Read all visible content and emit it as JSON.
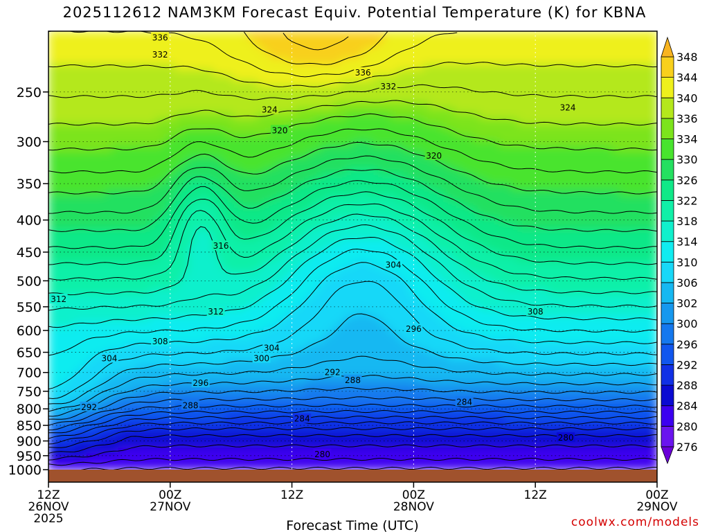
{
  "title": "2025112612 NAM3KM Forecast Equiv. Potential Temperature (K) for KBNA",
  "credit": "coolwx.com/models",
  "chart_data": {
    "type": "heatmap",
    "variable": "Equivalent Potential Temperature (K)",
    "xlabel": "Forecast Time (UTC)",
    "ylabel": "",
    "x_range_hours": [
      0,
      60
    ],
    "y_range_hpa": [
      200,
      1000
    ],
    "y_scale": "log-pressure (inverted)",
    "x_ticks": [
      {
        "hour": 0,
        "label": "12Z",
        "sub": "26NOV",
        "sub2": "2025"
      },
      {
        "hour": 12,
        "label": "00Z",
        "sub": "27NOV",
        "sub2": ""
      },
      {
        "hour": 24,
        "label": "12Z",
        "sub": "",
        "sub2": ""
      },
      {
        "hour": 36,
        "label": "00Z",
        "sub": "28NOV",
        "sub2": ""
      },
      {
        "hour": 48,
        "label": "12Z",
        "sub": "",
        "sub2": ""
      },
      {
        "hour": 60,
        "label": "00Z",
        "sub": "29NOV",
        "sub2": ""
      }
    ],
    "y_ticks": [
      250,
      300,
      350,
      400,
      450,
      500,
      550,
      600,
      650,
      700,
      750,
      800,
      850,
      900,
      950,
      1000
    ],
    "colorbar": {
      "levels": [
        276,
        280,
        284,
        288,
        292,
        296,
        300,
        302,
        306,
        310,
        314,
        318,
        322,
        326,
        330,
        334,
        336,
        340,
        344,
        348
      ],
      "colors": [
        "#6a00d8",
        "#6a14ee",
        "#3c00f0",
        "#0a0ad2",
        "#1030e6",
        "#1056ee",
        "#1478ee",
        "#1698ee",
        "#16b8f2",
        "#18d8f8",
        "#10ecf0",
        "#10f0cc",
        "#10f0a8",
        "#10e888",
        "#24e060",
        "#48e42e",
        "#7ce41c",
        "#b4e81c",
        "#eef01c",
        "#f8d01c",
        "#f8b420"
      ]
    },
    "grid": true,
    "surface_level_hpa": 1000,
    "contour_labels": [
      {
        "value": 336,
        "hour": 11.0,
        "hpa": 205
      },
      {
        "value": 332,
        "hour": 11.0,
        "hpa": 218
      },
      {
        "value": 336,
        "hour": 31.0,
        "hpa": 233
      },
      {
        "value": 332,
        "hour": 33.5,
        "hpa": 245
      },
      {
        "value": 324,
        "hour": 21.8,
        "hpa": 267
      },
      {
        "value": 324,
        "hour": 51.2,
        "hpa": 265
      },
      {
        "value": 320,
        "hour": 22.8,
        "hpa": 288
      },
      {
        "value": 320,
        "hour": 38.0,
        "hpa": 316
      },
      {
        "value": 316,
        "hour": 17.0,
        "hpa": 440
      },
      {
        "value": 312,
        "hour": 1.0,
        "hpa": 535
      },
      {
        "value": 312,
        "hour": 16.5,
        "hpa": 560
      },
      {
        "value": 304,
        "hour": 34.0,
        "hpa": 472
      },
      {
        "value": 308,
        "hour": 48.0,
        "hpa": 560
      },
      {
        "value": 296,
        "hour": 36.0,
        "hpa": 597
      },
      {
        "value": 308,
        "hour": 11.0,
        "hpa": 625
      },
      {
        "value": 304,
        "hour": 22.0,
        "hpa": 640
      },
      {
        "value": 300,
        "hour": 21.0,
        "hpa": 665
      },
      {
        "value": 304,
        "hour": 6.0,
        "hpa": 665
      },
      {
        "value": 292,
        "hour": 28.0,
        "hpa": 700
      },
      {
        "value": 288,
        "hour": 30.0,
        "hpa": 720
      },
      {
        "value": 296,
        "hour": 15.0,
        "hpa": 728
      },
      {
        "value": 288,
        "hour": 14.0,
        "hpa": 790
      },
      {
        "value": 292,
        "hour": 4.0,
        "hpa": 795
      },
      {
        "value": 284,
        "hour": 41.0,
        "hpa": 780
      },
      {
        "value": 284,
        "hour": 25.0,
        "hpa": 830
      },
      {
        "value": 280,
        "hour": 51.0,
        "hpa": 890
      },
      {
        "value": 280,
        "hour": 27.0,
        "hpa": 945
      }
    ]
  }
}
